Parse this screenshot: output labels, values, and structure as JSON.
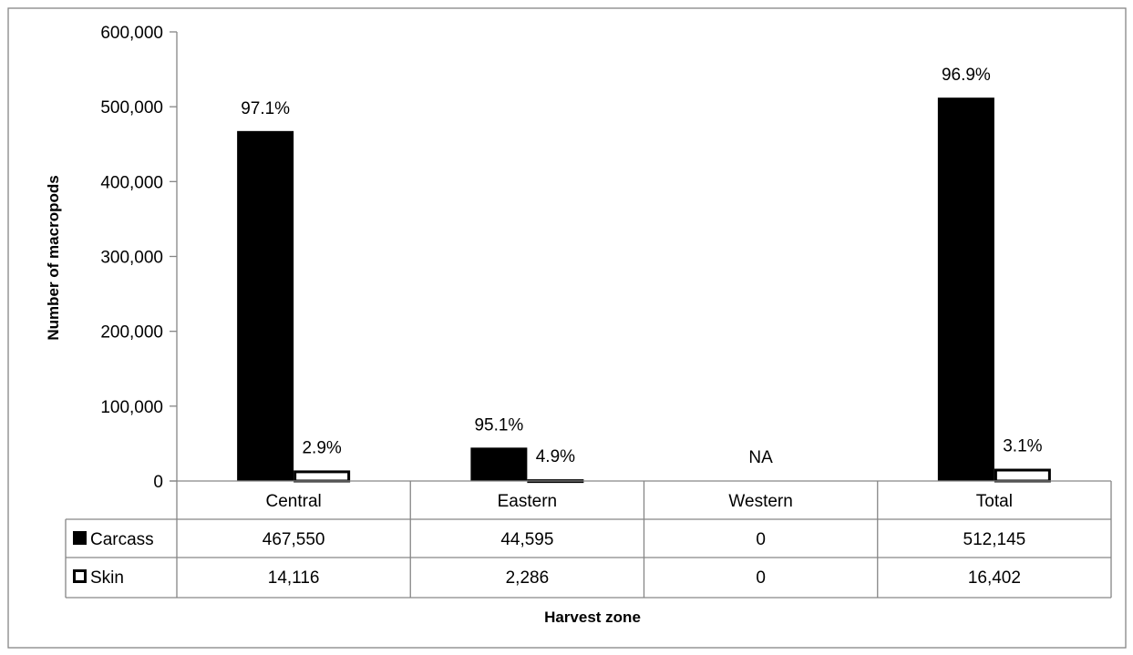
{
  "chart_data": {
    "type": "bar",
    "title": "",
    "xlabel": "Harvest zone",
    "ylabel": "Number of macropods",
    "ylim": [
      0,
      600000
    ],
    "yticks": [
      "0",
      "100,000",
      "200,000",
      "300,000",
      "400,000",
      "500,000",
      "600,000"
    ],
    "categories": [
      "Central",
      "Eastern",
      "Western",
      "Total"
    ],
    "grid": false,
    "legend": "data-table-left",
    "series": [
      {
        "name": "Carcass",
        "color": "#000000",
        "fill": "solid",
        "values": [
          467550,
          44595,
          0,
          512145
        ],
        "value_labels": [
          "467,550",
          "44,595",
          "0",
          "512,145"
        ],
        "percent_labels": [
          "97.1%",
          "95.1%",
          "",
          "96.9%"
        ]
      },
      {
        "name": "Skin",
        "color": "#000000",
        "fill": "outline",
        "values": [
          14116,
          2286,
          0,
          16402
        ],
        "value_labels": [
          "14,116",
          "2,286",
          "0",
          "16,402"
        ],
        "percent_labels": [
          "2.9%",
          "4.9%",
          "",
          "3.1%"
        ]
      }
    ],
    "annotations": [
      {
        "category": "Western",
        "text": "NA"
      }
    ]
  }
}
